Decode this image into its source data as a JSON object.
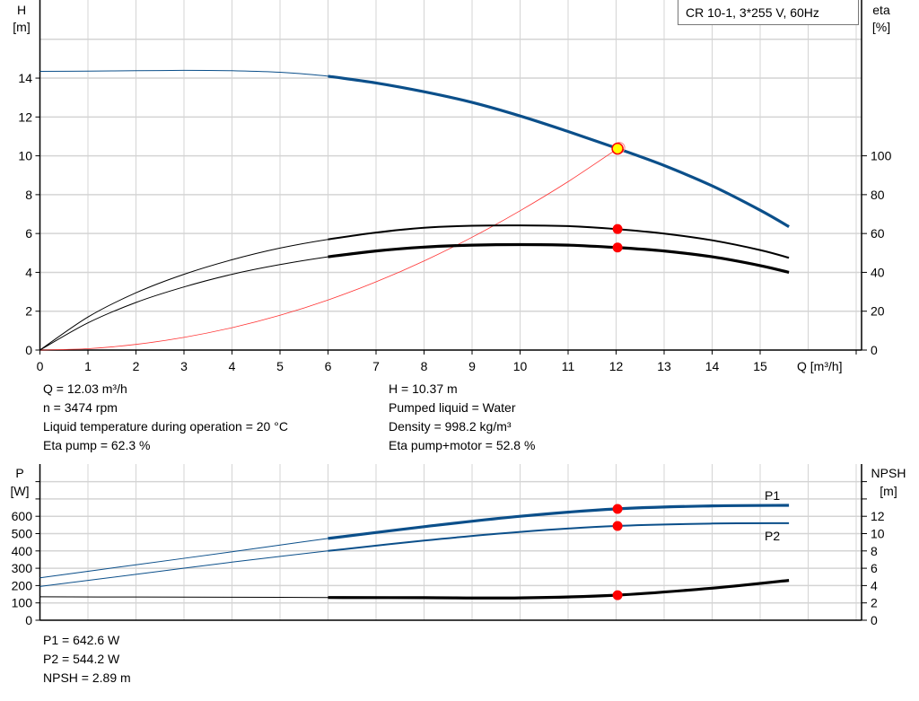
{
  "colors": {
    "head": "#0b4f8a",
    "efficiency": "#000000",
    "system": "#ff3333",
    "power": "#0b4f8a",
    "npsh": "#000000",
    "duty_point": "#ff0000",
    "duty_fill": "#ffff00",
    "grid": "#d4d4d4"
  },
  "legend": {
    "title": "CR 10-1, 3*255 V, 60Hz"
  },
  "info_top": {
    "q": "Q = 12.03 m³/h",
    "n": "n = 3474 rpm",
    "temp": "Liquid temperature during operation = 20 °C",
    "eta_pump": "Eta pump = 62.3 %",
    "h": "H = 10.37 m",
    "liquid": "Pumped liquid = Water",
    "density": "Density = 998.2 kg/m³",
    "eta_total": "Eta pump+motor = 52.8 %"
  },
  "info_bottom": {
    "p1": "P1 = 642.6 W",
    "p2": "P2 = 544.2 W",
    "npsh": "NPSH = 2.89 m"
  },
  "chart_data": [
    {
      "type": "line",
      "xlabel": "Q [m³/h]",
      "ylabel": "H",
      "ylabel_unit": "[m]",
      "y2label": "eta",
      "y2label_unit": "[%]",
      "xlim": [
        0,
        17
      ],
      "ylim": [
        0,
        18
      ],
      "y2lim": [
        0,
        180
      ],
      "xticks": [
        "0",
        "1",
        "2",
        "3",
        "4",
        "5",
        "6",
        "7",
        "8",
        "9",
        "10",
        "11",
        "12",
        "13",
        "14",
        "15"
      ],
      "yticks": [
        "0",
        "2",
        "4",
        "6",
        "8",
        "10",
        "12",
        "14"
      ],
      "y2ticks": [
        "0",
        "20",
        "40",
        "60",
        "80",
        "100"
      ],
      "grid": true,
      "x": [
        0,
        1,
        2,
        3,
        4,
        5,
        6,
        7,
        8,
        9,
        10,
        11,
        12,
        13,
        14,
        15,
        15.6
      ],
      "series": [
        {
          "key": "head",
          "axis": "H",
          "values": [
            14.35,
            14.36,
            14.38,
            14.4,
            14.38,
            14.3,
            14.1,
            13.75,
            13.3,
            12.75,
            12.05,
            11.25,
            10.4,
            9.5,
            8.45,
            7.2,
            6.35
          ]
        },
        {
          "key": "eta_pump",
          "axis": "eta",
          "values": [
            0,
            17,
            29.5,
            39,
            46.5,
            52.5,
            57,
            60.5,
            63,
            64,
            64.2,
            63.8,
            62.3,
            60,
            56.5,
            51.5,
            47.5
          ]
        },
        {
          "key": "eta_pump_motor",
          "axis": "eta",
          "values": [
            0,
            14,
            24.5,
            32.5,
            39,
            44,
            48,
            51,
            53,
            54,
            54.3,
            54,
            52.8,
            51,
            48,
            43.5,
            40
          ]
        }
      ],
      "system_curve": {
        "x": [
          0,
          1,
          2,
          3,
          4,
          5,
          6,
          7,
          8,
          9,
          10,
          11,
          12,
          12.03
        ],
        "values": [
          0,
          0.07,
          0.29,
          0.65,
          1.15,
          1.79,
          2.58,
          3.51,
          4.59,
          5.81,
          7.17,
          8.67,
          10.32,
          10.37
        ]
      },
      "duty_points": [
        {
          "key": "head",
          "x": 12.03,
          "y": 10.37
        },
        {
          "key": "eta_pump",
          "x": 12.03,
          "y": 62.3
        },
        {
          "key": "eta_pump_motor",
          "x": 12.03,
          "y": 52.8
        }
      ]
    },
    {
      "type": "line",
      "ylabel": "P",
      "ylabel_unit": "[W]",
      "y2label": "NPSH",
      "y2label_unit": "[m]",
      "xlim": [
        0,
        17
      ],
      "ylim": [
        0,
        900
      ],
      "y2lim": [
        0,
        18
      ],
      "yticks": [
        "0",
        "100",
        "200",
        "300",
        "400",
        "500",
        "600"
      ],
      "y2ticks": [
        "0",
        "2",
        "4",
        "6",
        "8",
        "10",
        "12"
      ],
      "grid": true,
      "x": [
        0,
        2,
        4,
        6,
        8,
        10,
        12,
        14,
        15.6
      ],
      "series": [
        {
          "name": "P1",
          "key": "p1",
          "axis": "P",
          "values": [
            245,
            320,
            395,
            472,
            540,
            600,
            642.6,
            660,
            663
          ]
        },
        {
          "name": "P2",
          "key": "p2",
          "axis": "P",
          "values": [
            195,
            265,
            335,
            400,
            460,
            510,
            544.2,
            558,
            560
          ]
        },
        {
          "key": "npsh",
          "axis": "NPSH",
          "values": [
            2.7,
            2.68,
            2.65,
            2.62,
            2.6,
            2.58,
            2.89,
            3.7,
            4.6
          ]
        }
      ],
      "duty_points": [
        {
          "key": "p1",
          "x": 12.03,
          "y": 642.6
        },
        {
          "key": "p2",
          "x": 12.03,
          "y": 544.2
        },
        {
          "key": "npsh",
          "x": 12.03,
          "y": 2.89
        }
      ]
    }
  ]
}
